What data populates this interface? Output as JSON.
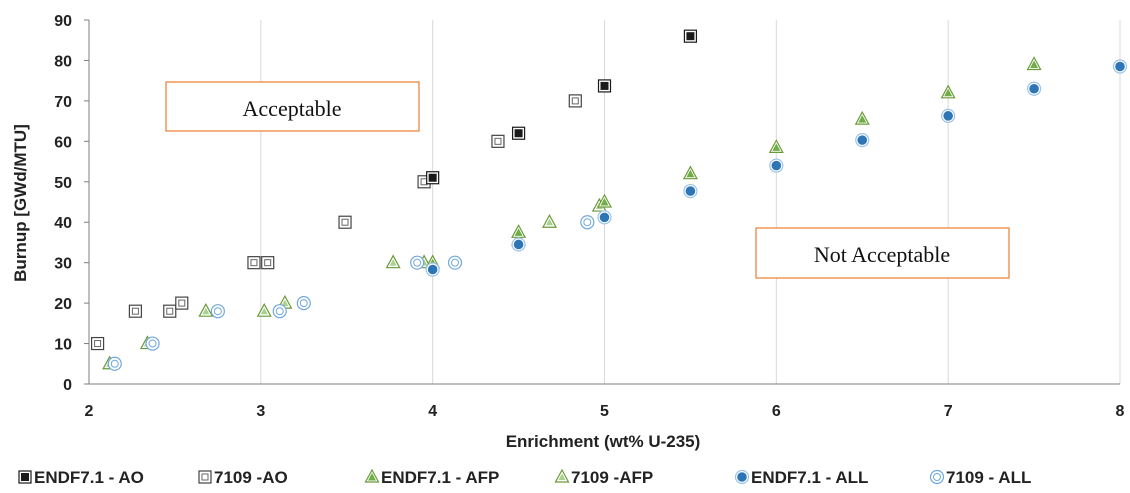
{
  "chart_data": {
    "type": "scatter",
    "xlabel": "Enrichment (wt% U-235)",
    "ylabel": "Burnup [GWd/MTU]",
    "xlim": [
      2,
      8
    ],
    "ylim": [
      0,
      90
    ],
    "x_ticks": [
      "2",
      "3",
      "4",
      "5",
      "6",
      "7",
      "8"
    ],
    "y_ticks": [
      "0",
      "10",
      "20",
      "30",
      "40",
      "50",
      "60",
      "70",
      "80",
      "90"
    ],
    "grid": "vertical",
    "legend_position": "bottom",
    "annotations": [
      "Acceptable",
      "Not Acceptable"
    ],
    "series": [
      {
        "name": "ENDF7.1 - AO",
        "marker": "filled-square",
        "points": [
          [
            4.0,
            51
          ],
          [
            4.5,
            62
          ],
          [
            5.0,
            73.7
          ],
          [
            5.5,
            86
          ]
        ]
      },
      {
        "name": "7109 -AO",
        "marker": "hollow-square",
        "points": [
          [
            2.05,
            10
          ],
          [
            2.27,
            18
          ],
          [
            2.47,
            18
          ],
          [
            2.54,
            20
          ],
          [
            2.96,
            30
          ],
          [
            3.04,
            30
          ],
          [
            3.49,
            40
          ],
          [
            3.95,
            50
          ],
          [
            4.38,
            60
          ],
          [
            4.83,
            70
          ]
        ]
      },
      {
        "name": "ENDF7.1 - AFP",
        "marker": "filled-triangle",
        "points": [
          [
            4.0,
            30
          ],
          [
            4.5,
            37.5
          ],
          [
            5.0,
            45
          ],
          [
            5.5,
            52
          ],
          [
            6.0,
            58.5
          ],
          [
            6.5,
            65.5
          ],
          [
            7.0,
            72
          ],
          [
            7.5,
            79
          ]
        ]
      },
      {
        "name": "7109 -AFP",
        "marker": "hollow-triangle",
        "points": [
          [
            2.12,
            5
          ],
          [
            2.34,
            10
          ],
          [
            2.68,
            18
          ],
          [
            3.02,
            18
          ],
          [
            3.14,
            20
          ],
          [
            3.77,
            30
          ],
          [
            3.95,
            30
          ],
          [
            4.5,
            35.5
          ],
          [
            4.68,
            40
          ],
          [
            4.97,
            44
          ]
        ]
      },
      {
        "name": "ENDF7.1 - ALL",
        "marker": "filled-circle",
        "points": [
          [
            4.0,
            28.3
          ],
          [
            4.5,
            34.5
          ],
          [
            5.0,
            41.2
          ],
          [
            5.5,
            47.7
          ],
          [
            6.0,
            54
          ],
          [
            6.5,
            60.3
          ],
          [
            7.0,
            66.3
          ],
          [
            7.5,
            73
          ],
          [
            8.0,
            78.5
          ]
        ]
      },
      {
        "name": "7109 - ALL",
        "marker": "hollow-circle",
        "points": [
          [
            2.15,
            5
          ],
          [
            2.37,
            10
          ],
          [
            2.75,
            18
          ],
          [
            3.11,
            18
          ],
          [
            3.25,
            20
          ],
          [
            3.91,
            30
          ],
          [
            4.13,
            30
          ],
          [
            4.9,
            40
          ]
        ]
      }
    ]
  },
  "colors": {
    "ao": "#1a1a1a",
    "afp": "#6a9a3a",
    "afp_fill": "#70ad47",
    "all": "#2e75b6",
    "all_light": "#6fa8dc",
    "annotation_border": "#ed7d31",
    "grid": "#d9d9d9"
  }
}
